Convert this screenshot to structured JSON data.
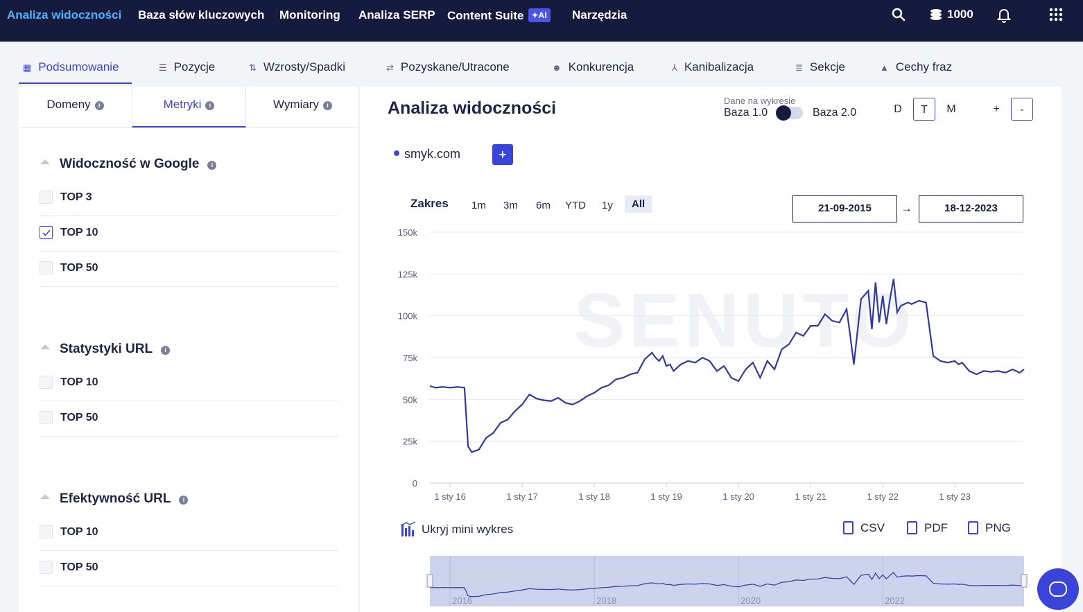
{
  "topnav": {
    "items": [
      "Analiza widoczności",
      "Baza słów kluczowych",
      "Monitoring",
      "Analiza SERP",
      "Content Suite",
      "Narzędzia"
    ],
    "ai_badge": "✦AI",
    "credits": "1000",
    "icons": [
      "search-icon",
      "coins-icon",
      "bell-icon",
      "apps-grid-icon"
    ],
    "accent": "#4fb3ff"
  },
  "subnav": {
    "tabs": [
      "Podsumowanie",
      "Pozycje",
      "Wzrosty/Spadki",
      "Pozyskane/Utracone",
      "Konkurencja",
      "Kanibalizacja",
      "Sekcje",
      "Cechy fraz"
    ]
  },
  "left": {
    "tabs": [
      "Domeny",
      "Metryki",
      "Wymiary"
    ],
    "sections": [
      {
        "title": "Widoczność w Google",
        "items": [
          {
            "label": "TOP 3",
            "checked": false
          },
          {
            "label": "TOP 10",
            "checked": true
          },
          {
            "label": "TOP 50",
            "checked": false
          }
        ]
      },
      {
        "title": "Statystyki URL",
        "items": [
          {
            "label": "TOP 10",
            "checked": false
          },
          {
            "label": "TOP 50",
            "checked": false
          }
        ]
      },
      {
        "title": "Efektywność URL",
        "items": [
          {
            "label": "TOP 10",
            "checked": false
          },
          {
            "label": "TOP 50",
            "checked": false
          }
        ]
      }
    ]
  },
  "main": {
    "title": "Analiza widoczności",
    "data_label": "Dane na wykresie",
    "baza1": "Baza 1.0",
    "baza2": "Baza 2.0",
    "periods": [
      "D",
      "T",
      "M"
    ],
    "active_period": "T",
    "zoom_in": "+",
    "zoom_out": "-",
    "domain": "smyk.com",
    "add": "+",
    "zakres": "Zakres",
    "ranges": [
      "1m",
      "3m",
      "6m",
      "YTD",
      "1y",
      "All"
    ],
    "active_range": "All",
    "date_from": "21-09-2015",
    "date_to": "18-12-2023",
    "arrow": "→",
    "hide_mini": "Ukryj mini wykres",
    "exports": [
      "CSV",
      "PDF",
      "PNG"
    ],
    "watermark": "SENUTO",
    "brand_color": "#3a44d8"
  },
  "chart_data": {
    "type": "line",
    "yticks": [
      "150k",
      "125k",
      "100k",
      "75k",
      "50k",
      "25k",
      "0"
    ],
    "ylim": [
      0,
      150000
    ],
    "xticks": [
      "1 sty 16",
      "1 sty 17",
      "1 sty 18",
      "1 sty 19",
      "1 sty 20",
      "1 sty 21",
      "1 sty 22",
      "1 sty 23"
    ],
    "mini_xticks": [
      "2016",
      "2018",
      "2020",
      "2022"
    ],
    "xstart": 2015.72,
    "xend": 2023.96,
    "series": [
      {
        "x": [
          2015.72,
          2015.8,
          2015.9,
          2016.0,
          2016.1,
          2016.2,
          2016.25,
          2016.3,
          2016.4,
          2016.5,
          2016.6,
          2016.7,
          2016.8,
          2016.9,
          2017.0,
          2017.1,
          2017.2,
          2017.3,
          2017.4,
          2017.5,
          2017.6,
          2017.7,
          2017.8,
          2017.9,
          2018.0,
          2018.1,
          2018.2,
          2018.3,
          2018.4,
          2018.5,
          2018.6,
          2018.7,
          2018.8,
          2018.85,
          2018.9,
          2018.95,
          2019.0,
          2019.05,
          2019.1,
          2019.2,
          2019.3,
          2019.4,
          2019.5,
          2019.6,
          2019.7,
          2019.8,
          2019.9,
          2020.0,
          2020.1,
          2020.2,
          2020.3,
          2020.4,
          2020.5,
          2020.6,
          2020.7,
          2020.8,
          2020.9,
          2021.0,
          2021.1,
          2021.2,
          2021.3,
          2021.4,
          2021.5,
          2021.55,
          2021.6,
          2021.7,
          2021.8,
          2021.85,
          2021.9,
          2021.95,
          2022.0,
          2022.05,
          2022.1,
          2022.15,
          2022.2,
          2022.25,
          2022.3,
          2022.35,
          2022.4,
          2022.45,
          2022.5,
          2022.6,
          2022.7,
          2022.8,
          2022.9,
          2023.0,
          2023.05,
          2023.1,
          2023.2,
          2023.3,
          2023.4,
          2023.5,
          2023.6,
          2023.7,
          2023.8,
          2023.9,
          2023.96
        ],
        "y": [
          58000,
          57000,
          57500,
          57000,
          57500,
          57000,
          22000,
          18500,
          20000,
          27000,
          30000,
          36000,
          38000,
          43000,
          47000,
          53000,
          50500,
          49500,
          49000,
          51000,
          48000,
          47000,
          49000,
          52000,
          54000,
          57000,
          58500,
          62000,
          63000,
          65000,
          66000,
          74000,
          78000,
          75000,
          73000,
          76000,
          70000,
          71000,
          67000,
          71000,
          73000,
          72000,
          75000,
          73000,
          67000,
          70000,
          63000,
          61000,
          68000,
          72000,
          63000,
          73000,
          68000,
          80000,
          83000,
          90000,
          88000,
          94000,
          94000,
          101000,
          97000,
          96000,
          104000,
          88000,
          71000,
          110000,
          115000,
          92000,
          120000,
          96000,
          112000,
          95000,
          110000,
          122000,
          102000,
          106000,
          107000,
          108000,
          107000,
          108000,
          109000,
          108000,
          76000,
          73000,
          72000,
          73000,
          71000,
          72000,
          67000,
          65000,
          67000,
          66500,
          67000,
          66000,
          68000,
          66000,
          68000
        ]
      }
    ]
  }
}
